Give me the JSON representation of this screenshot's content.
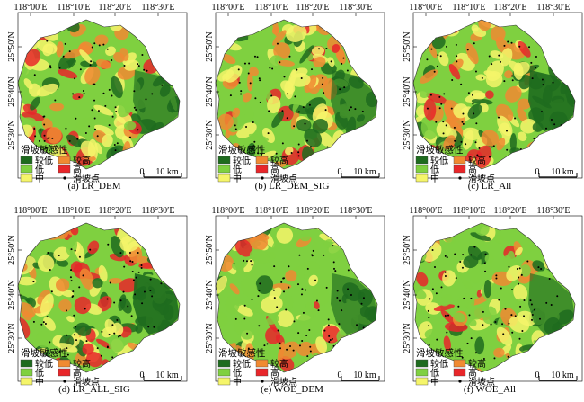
{
  "panels": [
    {
      "caption": "(a) LR_DEM",
      "variant": 0
    },
    {
      "caption": "(b) LR_DEM_SIG",
      "variant": 1
    },
    {
      "caption": "(c) LR_All",
      "variant": 2
    },
    {
      "caption": "(d) LR_ALL_SIG",
      "variant": 3
    },
    {
      "caption": "(e) WOE_DEM",
      "variant": 4
    },
    {
      "caption": "(f) WOE_All",
      "variant": 5
    }
  ],
  "axes": {
    "lon_labels": [
      "118°00′E",
      "118°10′E",
      "118°20′E",
      "118°30′E"
    ],
    "lat_labels": [
      "25°50′N",
      "25°40′N",
      "25°30′N"
    ]
  },
  "legend": {
    "title": "滑坡敏感性",
    "items": [
      {
        "label": "较低",
        "color": "#1e6b1e"
      },
      {
        "label": "较高",
        "color": "#f08a32"
      },
      {
        "label": "低",
        "color": "#7fd040"
      },
      {
        "label": "高",
        "color": "#e8262a"
      },
      {
        "label": "中",
        "color": "#f5f56a"
      },
      {
        "label": "滑坡点",
        "color": "#000000",
        "is_point": true
      }
    ]
  },
  "scale_bar": {
    "zero": "0",
    "distance": "10 km"
  },
  "colors": {
    "very_low": "#1e6b1e",
    "low": "#7fd040",
    "medium": "#f5f56a",
    "high_mid": "#f08a32",
    "high": "#e8262a"
  }
}
